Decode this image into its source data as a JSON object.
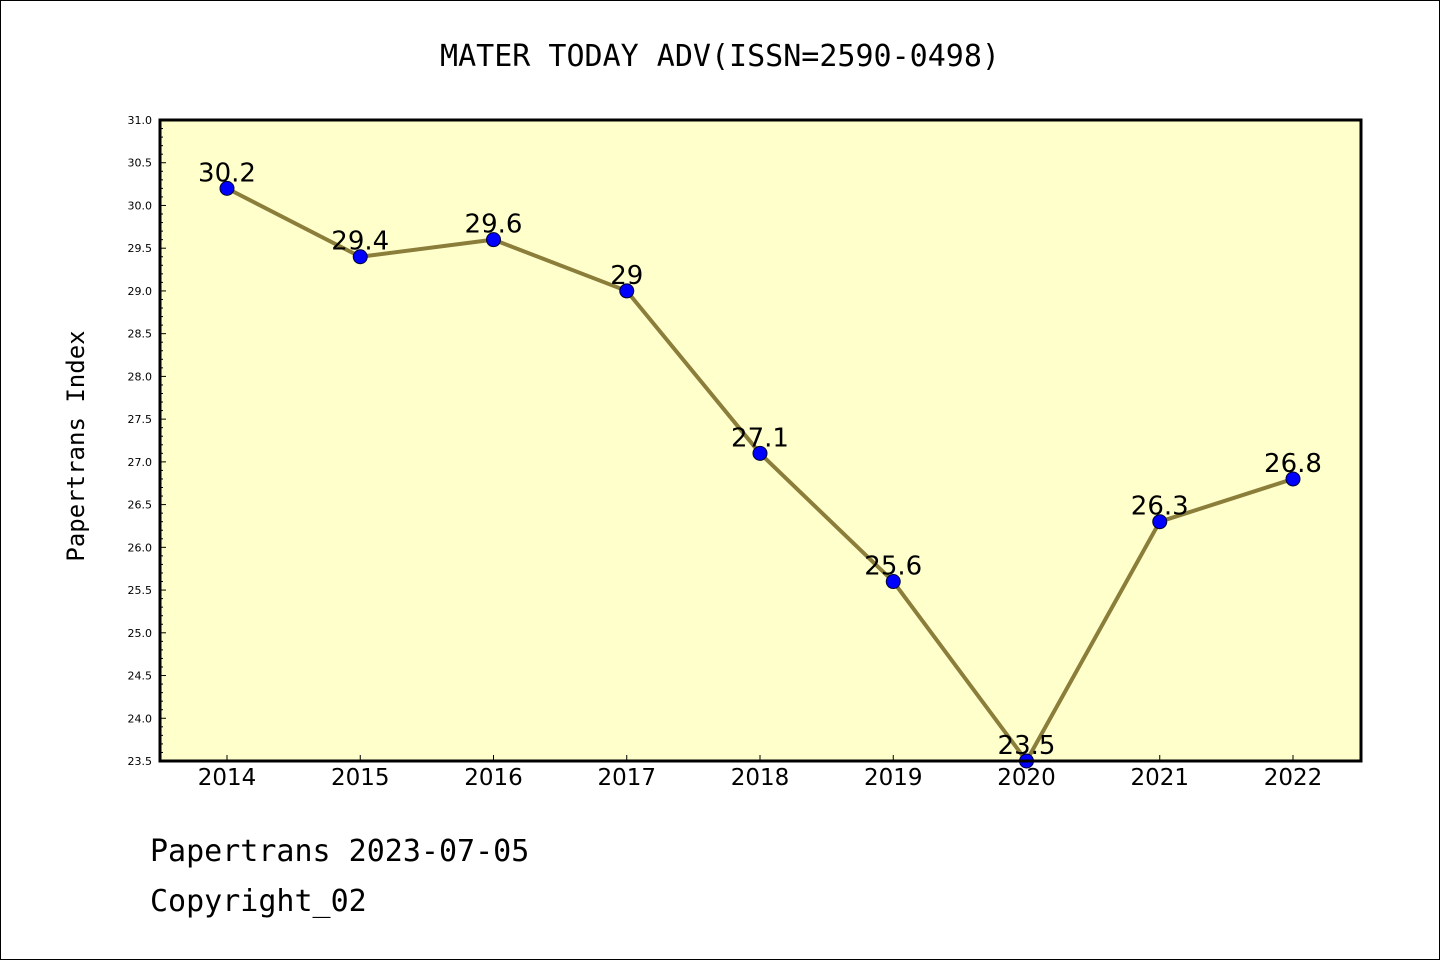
{
  "chart_data": {
    "type": "line",
    "title": "MATER TODAY ADV(ISSN=2590-0498)",
    "ylabel": "Papertrans Index",
    "xlabel": "",
    "categories": [
      "2014",
      "2015",
      "2016",
      "2017",
      "2018",
      "2019",
      "2020",
      "2021",
      "2022"
    ],
    "series": [
      {
        "values": [
          30.2,
          29.4,
          29.6,
          29.0,
          27.1,
          25.6,
          23.5,
          26.3,
          26.8
        ],
        "labels": [
          "30.2",
          "29.4",
          "29.6",
          "29",
          "27.1",
          "25.6",
          "23.5",
          "26.3",
          "26.8"
        ]
      }
    ],
    "ylim": [
      23.5,
      31.0
    ],
    "yticks": [
      "23.5",
      "24.0",
      "24.5",
      "25.0",
      "25.5",
      "26.0",
      "26.5",
      "27.0",
      "27.5",
      "28.0",
      "28.5",
      "29.0",
      "29.5",
      "30.0",
      "30.5",
      "31.0"
    ],
    "grid": false,
    "colors": {
      "plot_background": "#ffffcc",
      "line": "#8b7d3a",
      "marker": "#0000ff"
    }
  },
  "footer": {
    "line1": "Papertrans 2023-07-05",
    "line2": "Copyright_02"
  }
}
